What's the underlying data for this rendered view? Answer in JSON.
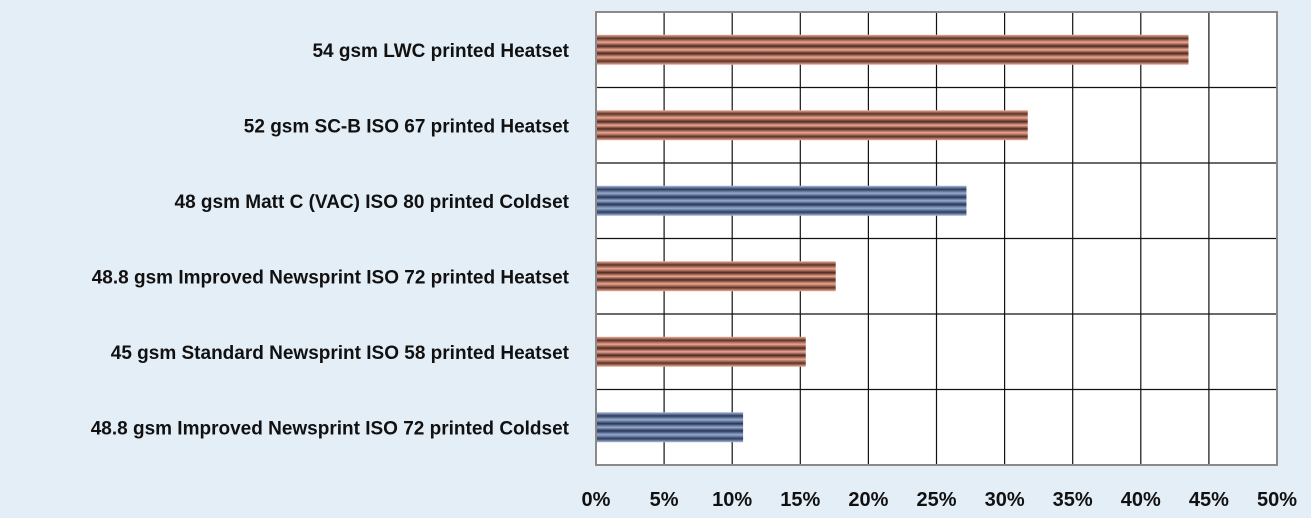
{
  "chart_data": {
    "type": "bar",
    "orientation": "horizontal",
    "title": "",
    "xlabel": "",
    "ylabel": "",
    "categories": [
      "54 gsm LWC printed Heatset",
      "52 gsm SC-B ISO 67 printed Heatset",
      "48 gsm Matt C (VAC) ISO 80 printed Coldset",
      "48.8 gsm Improved Newsprint ISO 72 printed Heatset",
      "45 gsm Standard Newsprint ISO 58 printed Heatset",
      "48.8 gsm Improved Newsprint ISO 72 printed Coldset"
    ],
    "values": [
      43.5,
      31.7,
      27.2,
      17.6,
      15.4,
      10.8
    ],
    "bar_colors": [
      "heatset",
      "heatset",
      "coldset",
      "heatset",
      "heatset",
      "coldset"
    ],
    "xlim": [
      0,
      50
    ],
    "xticks": [
      "0%",
      "5%",
      "10%",
      "15%",
      "20%",
      "25%",
      "30%",
      "35%",
      "40%",
      "45%",
      "50%"
    ],
    "grid": true,
    "colors": {
      "background": "#e4eef7",
      "plot_background": "#ffffff",
      "grid": "#111111",
      "heatset_dark": "#4a2a22",
      "heatset_light": "#f2a68f",
      "coldset_dark": "#2a3552",
      "coldset_light": "#93acd4"
    }
  }
}
